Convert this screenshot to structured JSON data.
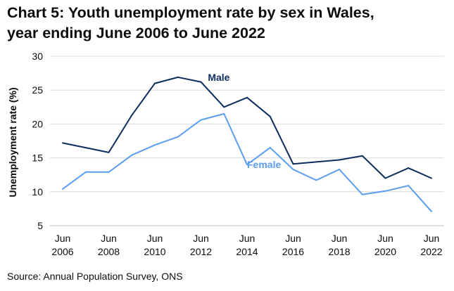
{
  "title_lines": [
    "Chart 5: Youth unemployment rate by sex in Wales,",
    "year ending June 2006 to June 2022"
  ],
  "source": "Source: Annual Population Survey, ONS",
  "colors": {
    "male": "#0b2d5e",
    "female": "#5b9df0",
    "grid": "#d9d9d9",
    "axis": "#bfbfbf"
  },
  "chart_data": {
    "type": "line",
    "title": "Chart 5: Youth unemployment rate by sex in Wales, year ending June 2006 to June 2022",
    "xlabel": "",
    "ylabel": "Unemployment rate (%)",
    "ylim": [
      5,
      30
    ],
    "yticks": [
      5,
      10,
      15,
      20,
      25,
      30
    ],
    "x": [
      2006,
      2007,
      2008,
      2009,
      2010,
      2011,
      2012,
      2013,
      2014,
      2015,
      2016,
      2017,
      2018,
      2019,
      2020,
      2021,
      2022
    ],
    "xtick_labels": [
      {
        "x": 2006,
        "line1": "Jun",
        "line2": "2006"
      },
      {
        "x": 2008,
        "line1": "Jun",
        "line2": "2008"
      },
      {
        "x": 2010,
        "line1": "Jun",
        "line2": "2010"
      },
      {
        "x": 2012,
        "line1": "Jun",
        "line2": "2012"
      },
      {
        "x": 2014,
        "line1": "Jun",
        "line2": "2014"
      },
      {
        "x": 2016,
        "line1": "Jun",
        "line2": "2016"
      },
      {
        "x": 2018,
        "line1": "Jun",
        "line2": "2018"
      },
      {
        "x": 2020,
        "line1": "Jun",
        "line2": "2020"
      },
      {
        "x": 2022,
        "line1": "Jun",
        "line2": "2022"
      }
    ],
    "grid": true,
    "series": [
      {
        "name": "Male",
        "color_key": "male",
        "label_x": 2012.3,
        "label_y": 26.9,
        "values": [
          17.2,
          16.5,
          15.8,
          21.3,
          26.0,
          26.9,
          26.2,
          22.5,
          23.9,
          21.1,
          14.1,
          14.4,
          14.7,
          15.3,
          12.0,
          13.5,
          12.0
        ]
      },
      {
        "name": "Female",
        "color_key": "female",
        "label_x": 2014.0,
        "label_y": 14.0,
        "values": [
          10.4,
          12.9,
          12.9,
          15.4,
          16.9,
          18.1,
          20.6,
          21.5,
          14.0,
          16.5,
          13.3,
          11.7,
          13.3,
          9.6,
          10.1,
          10.9,
          7.1
        ]
      }
    ]
  }
}
